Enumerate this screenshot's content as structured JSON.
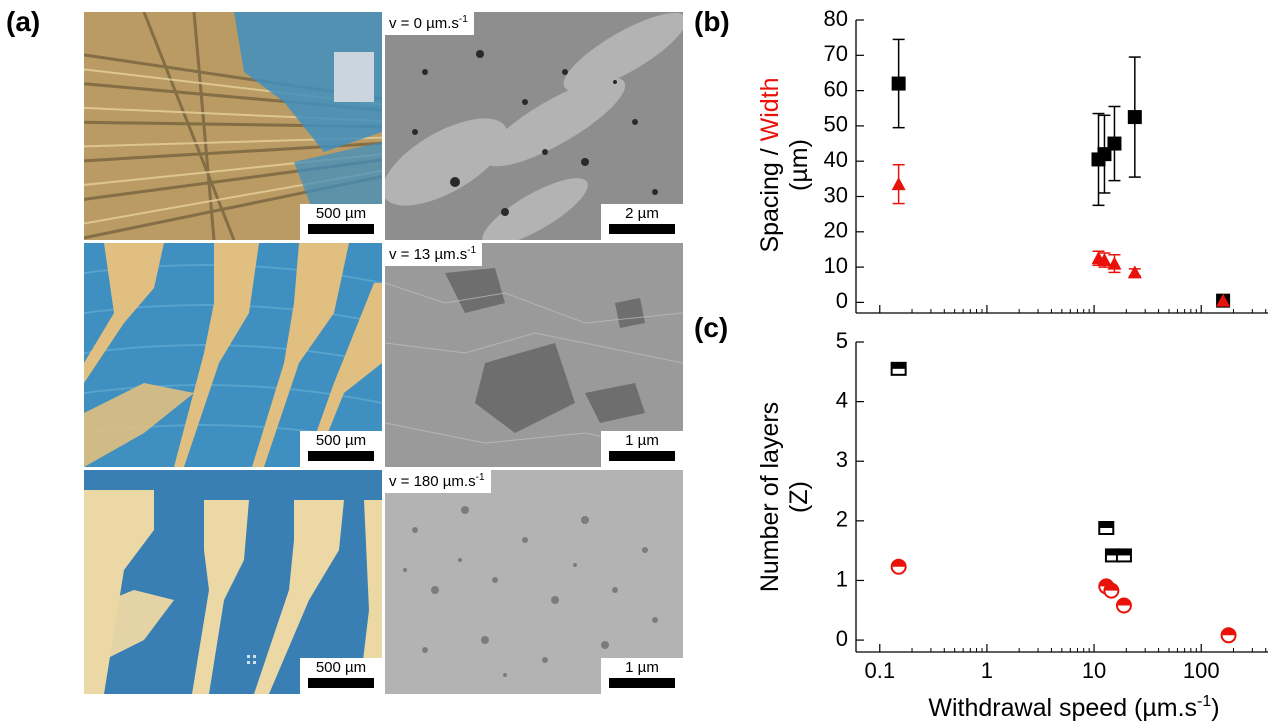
{
  "panel_labels": {
    "a": "(a)",
    "b": "(b)",
    "c": "(c)"
  },
  "micrographs": [
    {
      "optical_scale": "500 µm",
      "sem_speed": "v = 0 µm.s",
      "sem_speed_exp": "-1",
      "sem_scale": "2 µm"
    },
    {
      "optical_scale": "500 µm",
      "sem_speed": "v = 13 µm.s",
      "sem_speed_exp": "-1",
      "sem_scale": "1 µm"
    },
    {
      "optical_scale": "500 µm",
      "sem_speed": "v = 180 µm.s",
      "sem_speed_exp": "-1",
      "sem_scale": "1 µm"
    }
  ],
  "colors": {
    "black_series": "#000000",
    "red_series": "#e8120b",
    "optical_blue": "#3f8fc0",
    "gold": "#e8c98a"
  },
  "chart_data": [
    {
      "type": "scatter",
      "panel": "b",
      "ylabel_part1": "Spacing / ",
      "ylabel_part2": "Width",
      "ylabel_units": "(µm)",
      "xscale": "log",
      "xlim": [
        0.06,
        420
      ],
      "ylim": [
        -3,
        80
      ],
      "yticks": [
        0,
        10,
        20,
        30,
        40,
        50,
        60,
        70,
        80
      ],
      "series": [
        {
          "marker": "square",
          "color": "#000000",
          "points": [
            {
              "x": 0.15,
              "y": 62,
              "err": 12.5
            },
            {
              "x": 11,
              "y": 40.5,
              "err": 13
            },
            {
              "x": 12.5,
              "y": 42,
              "err": 11
            },
            {
              "x": 15.5,
              "y": 45,
              "err": 10.5
            },
            {
              "x": 24,
              "y": 52.5,
              "err": 17
            },
            {
              "x": 160,
              "y": 0.5,
              "err": 0
            }
          ]
        },
        {
          "marker": "triangle",
          "color": "#e8120b",
          "points": [
            {
              "x": 0.15,
              "y": 33.5,
              "err": 5.5
            },
            {
              "x": 11,
              "y": 12.5,
              "err": 2
            },
            {
              "x": 12.5,
              "y": 12,
              "err": 2
            },
            {
              "x": 15.5,
              "y": 11,
              "err": 2.5
            },
            {
              "x": 24,
              "y": 8.5,
              "err": 1
            },
            {
              "x": 160,
              "y": 0.5,
              "err": 0
            }
          ]
        }
      ]
    },
    {
      "type": "scatter",
      "panel": "c",
      "xlabel": "Withdrawal speed (µm.s",
      "xlabel_exp": "-1",
      "xlabel_close": ")",
      "ylabel_line1": "Number of layers",
      "ylabel_line2": "(Z)",
      "xscale": "log",
      "xlim": [
        0.06,
        420
      ],
      "ylim": [
        -0.2,
        5
      ],
      "yticks": [
        0,
        1,
        2,
        3,
        4,
        5
      ],
      "xticks": [
        0.1,
        1,
        10,
        100
      ],
      "xtick_labels": [
        "0.1",
        "1",
        "10",
        "100"
      ],
      "series": [
        {
          "marker": "half-square",
          "color": "#000000",
          "points": [
            {
              "x": 0.15,
              "y": 4.55
            },
            {
              "x": 13,
              "y": 1.88
            },
            {
              "x": 15,
              "y": 1.42
            },
            {
              "x": 19,
              "y": 1.42
            }
          ]
        },
        {
          "marker": "half-circle",
          "color": "#e8120b",
          "points": [
            {
              "x": 0.15,
              "y": 1.23
            },
            {
              "x": 13,
              "y": 0.9
            },
            {
              "x": 14.5,
              "y": 0.83
            },
            {
              "x": 19,
              "y": 0.58
            },
            {
              "x": 180,
              "y": 0.08
            }
          ]
        }
      ]
    }
  ]
}
